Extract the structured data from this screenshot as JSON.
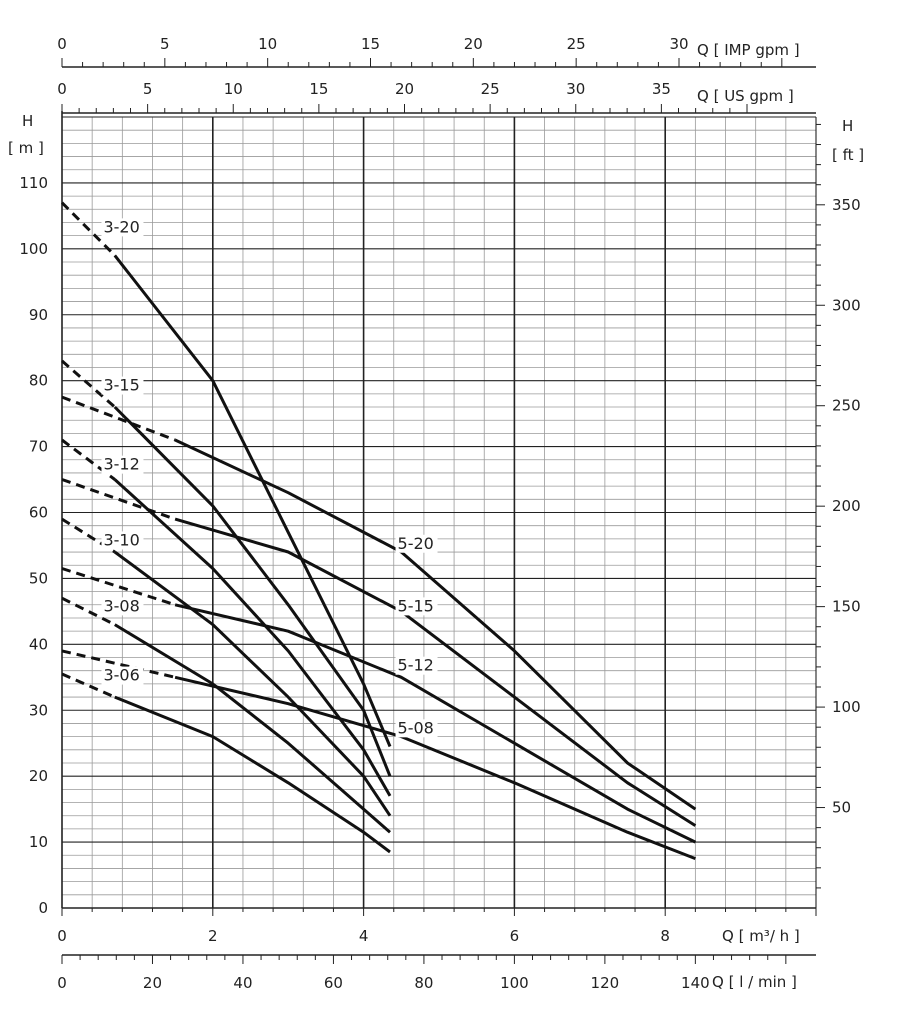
{
  "chart_data": {
    "type": "line",
    "axes": {
      "x_primary": {
        "label": "Q [ m³/ h ]",
        "min": 0,
        "max": 10,
        "ticks": [
          0,
          2,
          4,
          6,
          8
        ]
      },
      "x_lpm": {
        "label": "Q [ l / min ]",
        "ticks": [
          0,
          20,
          40,
          60,
          80,
          100,
          120,
          140
        ],
        "per_m3h": 16.6667
      },
      "x_imp": {
        "label": "Q [ IMP gpm ]",
        "ticks": [
          0,
          5,
          10,
          15,
          20,
          25,
          30
        ],
        "per_m3h": 3.6662
      },
      "x_us": {
        "label": "Q [ US gpm ]",
        "ticks": [
          0,
          5,
          10,
          15,
          20,
          25,
          30,
          35
        ],
        "per_m3h": 4.4029
      },
      "y_left": {
        "label_line1": "H",
        "label_line2": "[ m ]",
        "min": 0,
        "max": 120,
        "ticks": [
          0,
          10,
          20,
          30,
          40,
          50,
          60,
          70,
          80,
          90,
          100,
          110
        ]
      },
      "y_right": {
        "label_line1": "H",
        "label_line2": "[ ft ]",
        "ticks": [
          50,
          100,
          150,
          200,
          250,
          300,
          350
        ],
        "per_m": 3.28084
      }
    },
    "grid": true,
    "series": [
      {
        "name": "3-20",
        "dashed_to": 0.7,
        "points": [
          [
            0,
            107
          ],
          [
            0.7,
            99
          ],
          [
            2.0,
            80
          ],
          [
            3.0,
            57
          ],
          [
            4.0,
            34
          ],
          [
            4.35,
            24.5
          ]
        ]
      },
      {
        "name": "3-15",
        "dashed_to": 0.7,
        "points": [
          [
            0,
            83
          ],
          [
            0.7,
            76
          ],
          [
            2.0,
            61
          ],
          [
            3.0,
            46
          ],
          [
            4.0,
            30
          ],
          [
            4.35,
            20
          ]
        ]
      },
      {
        "name": "3-12",
        "dashed_to": 0.7,
        "points": [
          [
            0,
            71
          ],
          [
            0.7,
            65
          ],
          [
            2.0,
            51.5
          ],
          [
            3.0,
            39
          ],
          [
            4.0,
            24
          ],
          [
            4.35,
            17
          ]
        ]
      },
      {
        "name": "3-10",
        "dashed_to": 0.7,
        "points": [
          [
            0,
            59
          ],
          [
            0.7,
            54
          ],
          [
            2.0,
            43
          ],
          [
            3.0,
            32
          ],
          [
            4.0,
            20
          ],
          [
            4.35,
            14
          ]
        ]
      },
      {
        "name": "3-08",
        "dashed_to": 0.7,
        "points": [
          [
            0,
            47
          ],
          [
            0.7,
            43
          ],
          [
            2.0,
            34
          ],
          [
            3.0,
            25
          ],
          [
            4.0,
            15
          ],
          [
            4.35,
            11.5
          ]
        ]
      },
      {
        "name": "3-06",
        "dashed_to": 0.7,
        "points": [
          [
            0,
            35.5
          ],
          [
            0.7,
            32
          ],
          [
            2.0,
            26
          ],
          [
            3.0,
            19
          ],
          [
            4.0,
            11.5
          ],
          [
            4.35,
            8.5
          ]
        ]
      },
      {
        "name": "5-20",
        "dashed_to": 1.5,
        "points": [
          [
            0,
            77.5
          ],
          [
            1.5,
            71
          ],
          [
            3.0,
            63
          ],
          [
            4.5,
            54
          ],
          [
            6.0,
            39
          ],
          [
            7.5,
            22
          ],
          [
            8.4,
            15
          ]
        ]
      },
      {
        "name": "5-15",
        "dashed_to": 1.5,
        "points": [
          [
            0,
            65
          ],
          [
            1.5,
            59
          ],
          [
            3.0,
            54
          ],
          [
            4.5,
            45
          ],
          [
            6.0,
            32
          ],
          [
            7.5,
            19
          ],
          [
            8.4,
            12.5
          ]
        ]
      },
      {
        "name": "5-12",
        "dashed_to": 1.5,
        "points": [
          [
            0,
            51.5
          ],
          [
            1.5,
            46
          ],
          [
            3.0,
            42
          ],
          [
            4.5,
            35
          ],
          [
            6.0,
            25
          ],
          [
            7.5,
            15
          ],
          [
            8.4,
            10
          ]
        ]
      },
      {
        "name": "5-08",
        "dashed_to": 1.5,
        "points": [
          [
            0,
            39
          ],
          [
            1.5,
            35
          ],
          [
            3.0,
            31
          ],
          [
            4.5,
            26
          ],
          [
            6.0,
            19
          ],
          [
            7.5,
            11.5
          ],
          [
            8.4,
            7.5
          ]
        ]
      }
    ],
    "labels": [
      {
        "text": "3-20",
        "x": 0.55,
        "y": 102.5
      },
      {
        "text": "3-15",
        "x": 0.55,
        "y": 78.5
      },
      {
        "text": "3-12",
        "x": 0.55,
        "y": 66.5
      },
      {
        "text": "3-10",
        "x": 0.55,
        "y": 55
      },
      {
        "text": "3-08",
        "x": 0.55,
        "y": 45
      },
      {
        "text": "3-06",
        "x": 0.55,
        "y": 34.5
      },
      {
        "text": "5-20",
        "x": 4.45,
        "y": 54.5
      },
      {
        "text": "5-15",
        "x": 4.45,
        "y": 45
      },
      {
        "text": "5-12",
        "x": 4.45,
        "y": 36
      },
      {
        "text": "5-08",
        "x": 4.45,
        "y": 26.5
      }
    ],
    "colors": {
      "grid_major": "#222222",
      "grid_minor": "#9a9a9a",
      "curve": "#111111",
      "text": "#222222"
    }
  }
}
